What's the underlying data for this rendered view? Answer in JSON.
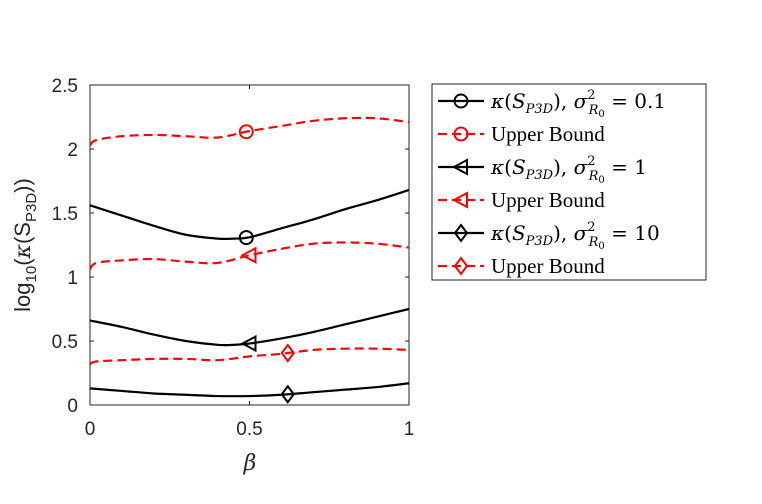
{
  "chart_data": {
    "type": "line",
    "xlabel": "β",
    "ylabel": "log10(κ(SP3D))",
    "ylabel_parts": {
      "prefix": "log",
      "sub": "10",
      "open": "(",
      "kappa": "κ",
      "inner_open": "(S",
      "inner_sub": "P3D",
      "close": "))"
    },
    "xlim": [
      0,
      1
    ],
    "ylim": [
      0,
      2.5
    ],
    "xticks": [
      0,
      0.5,
      1
    ],
    "xtick_labels": [
      "0",
      "0.5",
      "1"
    ],
    "yticks": [
      0,
      0.5,
      1,
      1.5,
      2,
      2.5
    ],
    "ytick_labels": [
      "0",
      "0.5",
      "1",
      "1.5",
      "2",
      "2.5"
    ],
    "grid": false,
    "legend_position": "outside-right",
    "colors": {
      "kappa": "#000000",
      "bound": "#ff0000"
    },
    "series": [
      {
        "name": "κ(SP3D), σ²R0 = 0.1",
        "style": "solid",
        "color": "#000000",
        "marker": "circle",
        "marker_x": 0.49,
        "x": [
          0,
          0.1,
          0.2,
          0.3,
          0.4,
          0.45,
          0.5,
          0.6,
          0.7,
          0.8,
          0.9,
          1.0
        ],
        "y": [
          1.56,
          1.48,
          1.4,
          1.33,
          1.3,
          1.3,
          1.31,
          1.38,
          1.45,
          1.53,
          1.6,
          1.68
        ]
      },
      {
        "name": "Upper Bound",
        "style": "dashed",
        "color": "#ff0000",
        "marker": "circle",
        "marker_x": 0.49,
        "x": [
          0,
          0.02,
          0.1,
          0.2,
          0.3,
          0.4,
          0.5,
          0.6,
          0.7,
          0.8,
          0.9,
          1.0
        ],
        "y": [
          2.03,
          2.07,
          2.1,
          2.11,
          2.1,
          2.09,
          2.14,
          2.18,
          2.22,
          2.24,
          2.24,
          2.21
        ]
      },
      {
        "name": "κ(SP3D), σ²R0 = 1",
        "style": "solid",
        "color": "#000000",
        "marker": "triangle-left",
        "marker_x": 0.5,
        "x": [
          0,
          0.1,
          0.2,
          0.3,
          0.4,
          0.45,
          0.5,
          0.6,
          0.7,
          0.8,
          0.9,
          1.0
        ],
        "y": [
          0.66,
          0.61,
          0.55,
          0.5,
          0.47,
          0.47,
          0.48,
          0.52,
          0.57,
          0.63,
          0.69,
          0.75
        ]
      },
      {
        "name": "Upper Bound",
        "style": "dashed",
        "color": "#ff0000",
        "marker": "triangle-left",
        "marker_x": 0.5,
        "x": [
          0,
          0.02,
          0.1,
          0.2,
          0.3,
          0.4,
          0.5,
          0.6,
          0.7,
          0.8,
          0.9,
          1.0
        ],
        "y": [
          1.06,
          1.11,
          1.13,
          1.14,
          1.12,
          1.11,
          1.17,
          1.22,
          1.26,
          1.27,
          1.26,
          1.23
        ]
      },
      {
        "name": "κ(SP3D), σ²R0 = 10",
        "style": "solid",
        "color": "#000000",
        "marker": "diamond",
        "marker_x": 0.62,
        "x": [
          0,
          0.1,
          0.2,
          0.3,
          0.4,
          0.5,
          0.6,
          0.7,
          0.8,
          0.9,
          1.0
        ],
        "y": [
          0.13,
          0.11,
          0.09,
          0.08,
          0.07,
          0.07,
          0.08,
          0.1,
          0.12,
          0.14,
          0.17
        ]
      },
      {
        "name": "Upper Bound",
        "style": "dashed",
        "color": "#ff0000",
        "marker": "diamond",
        "marker_x": 0.62,
        "x": [
          0,
          0.02,
          0.1,
          0.2,
          0.3,
          0.4,
          0.5,
          0.6,
          0.7,
          0.8,
          0.9,
          1.0
        ],
        "y": [
          0.32,
          0.34,
          0.35,
          0.36,
          0.36,
          0.35,
          0.38,
          0.4,
          0.43,
          0.44,
          0.44,
          0.43
        ]
      }
    ],
    "legend_entries": [
      {
        "kind": "math",
        "sigma_val": "0.1"
      },
      {
        "kind": "text",
        "label": "Upper Bound"
      },
      {
        "kind": "math",
        "sigma_val": "1"
      },
      {
        "kind": "text",
        "label": "Upper Bound"
      },
      {
        "kind": "math",
        "sigma_val": "10"
      },
      {
        "kind": "text",
        "label": "Upper Bound"
      }
    ],
    "legend_math_parts": {
      "kappa": "κ",
      "open": "(",
      "S": "S",
      "sub": "P3D",
      "close": "),",
      "sigma": "σ",
      "sup": "2",
      "R": "R",
      "rsub": "0",
      "eq": "="
    }
  }
}
